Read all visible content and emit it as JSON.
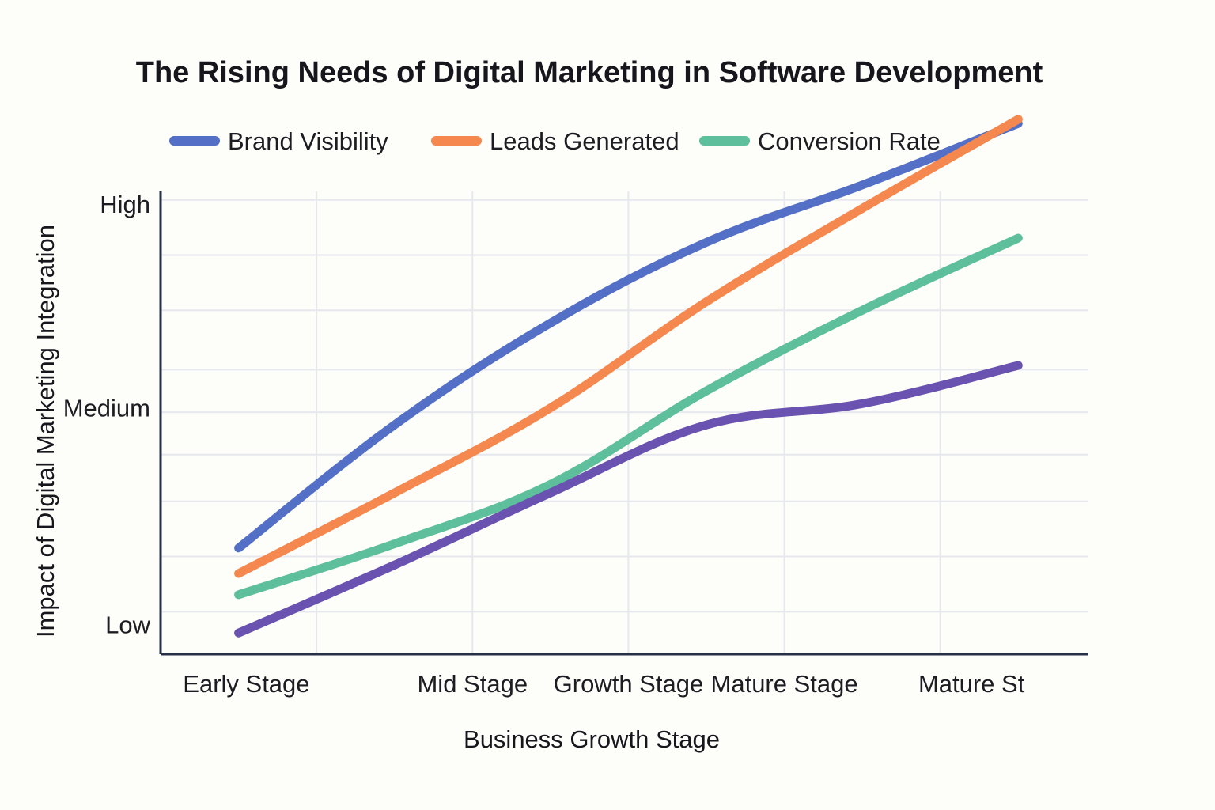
{
  "title": "The Rising Needs of Digital Marketing in Software Development",
  "chart_data": {
    "type": "line",
    "title": "The Rising Needs of Digital Marketing in Software Development",
    "xlabel": "Business Growth Stage",
    "ylabel": "Impact of Digital Marketing Integration",
    "x": [
      0,
      1,
      2,
      3,
      4,
      5
    ],
    "x_tick_labels": [
      {
        "label": "Early Stage",
        "x": 0.05
      },
      {
        "label": "Mid Stage",
        "x": 1.5
      },
      {
        "label": "Growth Stage",
        "x": 2.5
      },
      {
        "label": "Mature Stage",
        "x": 3.5
      },
      {
        "label": "Mature St",
        "x": 4.7
      }
    ],
    "y_tick_labels": [
      {
        "label": "Low",
        "y": 0.1
      },
      {
        "label": "Medium",
        "y": 5.2
      },
      {
        "label": "High",
        "y": 10
      }
    ],
    "xlim": [
      -0.5,
      5.45
    ],
    "ylim": [
      -0.6,
      10.3
    ],
    "x_grid": [
      0.5,
      1.5,
      2.5,
      3.5,
      4.5
    ],
    "y_grid": [
      0.4,
      1.7,
      3.0,
      4.1,
      5.1,
      6.1,
      7.5,
      8.8,
      10.1
    ],
    "legend_position": "top",
    "series": [
      {
        "name": "Brand Visibility",
        "color": "#5470c6",
        "values": [
          1.9,
          4.8,
          7.2,
          9.1,
          10.45,
          11.9
        ],
        "show_in_legend": true
      },
      {
        "name": "Leads Generated",
        "color": "#f4884e",
        "values": [
          1.3,
          3.2,
          5.2,
          7.7,
          9.9,
          12.0
        ],
        "show_in_legend": true
      },
      {
        "name": "Conversion Rate",
        "color": "#5dbf9c",
        "values": [
          0.8,
          2.0,
          3.4,
          5.6,
          7.5,
          9.2
        ],
        "show_in_legend": true
      },
      {
        "name": "",
        "color": "#6a52b0",
        "values": [
          -0.1,
          1.5,
          3.2,
          4.8,
          5.3,
          6.2
        ],
        "show_in_legend": false
      }
    ]
  }
}
